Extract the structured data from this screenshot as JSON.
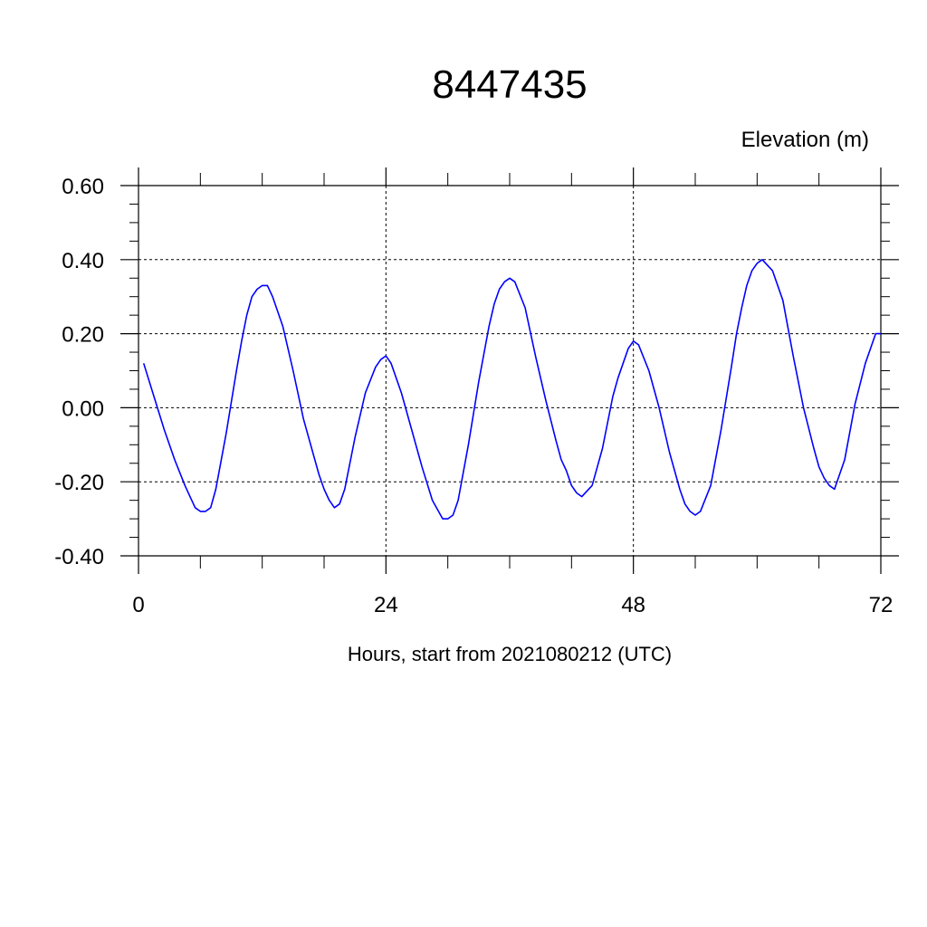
{
  "chart_data": {
    "type": "line",
    "title": "8447435",
    "ylabel": "Elevation (m)",
    "xlabel": "Hours, start from 2021080212 (UTC)",
    "xlim": [
      0,
      72
    ],
    "ylim": [
      -0.4,
      0.6
    ],
    "x_ticks": [
      0,
      24,
      48,
      72
    ],
    "x_tick_labels": [
      "0",
      "24",
      "48",
      "72"
    ],
    "y_ticks": [
      -0.4,
      -0.2,
      0.0,
      0.2,
      0.4,
      0.6
    ],
    "y_tick_labels": [
      "-0.40",
      "-0.20",
      "0.00",
      "0.20",
      "0.40",
      "0.60"
    ],
    "grid": true,
    "line_color": "#0000ff",
    "series": [
      {
        "x": [
          0.5,
          1.5,
          2.5,
          3.5,
          4.5,
          5.0,
          5.5,
          6.0,
          6.5,
          7.0,
          7.5,
          8.5,
          9.5,
          10.0,
          10.5,
          11.0,
          11.5,
          12.0,
          12.5,
          13.0,
          14.0,
          15.0,
          16.0,
          17.0,
          17.5,
          18.0,
          18.5,
          19.0,
          19.5,
          20.0,
          21.0,
          22.0,
          23.0,
          23.5,
          24.0,
          24.5,
          25.5,
          26.5,
          27.5,
          28.5,
          29.5,
          30.0,
          30.5,
          31.0,
          32.0,
          33.0,
          34.0,
          34.5,
          35.0,
          35.5,
          36.0,
          36.5,
          37.5,
          38.5,
          39.5,
          40.5,
          41.0,
          41.5,
          42.0,
          42.5,
          43.0,
          44.0,
          45.0,
          46.0,
          46.5,
          47.0,
          47.5,
          48.0,
          48.5,
          49.5,
          50.5,
          51.5,
          52.5,
          53.0,
          53.5,
          54.0,
          54.5,
          55.5,
          56.5,
          57.5,
          58.0,
          58.5,
          59.0,
          59.5,
          60.0,
          60.5,
          61.5,
          62.5,
          63.5,
          64.5,
          65.5,
          66.0,
          66.5,
          67.0,
          67.5,
          68.5,
          69.5,
          70.5,
          71.5,
          72.0
        ],
        "y": [
          0.12,
          0.03,
          -0.06,
          -0.14,
          -0.21,
          -0.24,
          -0.27,
          -0.28,
          -0.28,
          -0.27,
          -0.22,
          -0.07,
          0.1,
          0.18,
          0.25,
          0.3,
          0.32,
          0.33,
          0.33,
          0.3,
          0.22,
          0.1,
          -0.03,
          -0.13,
          -0.18,
          -0.22,
          -0.25,
          -0.27,
          -0.26,
          -0.22,
          -0.08,
          0.04,
          0.11,
          0.13,
          0.14,
          0.12,
          0.04,
          -0.06,
          -0.16,
          -0.25,
          -0.3,
          -0.3,
          -0.29,
          -0.25,
          -0.1,
          0.07,
          0.22,
          0.28,
          0.32,
          0.34,
          0.35,
          0.34,
          0.27,
          0.14,
          0.02,
          -0.09,
          -0.14,
          -0.17,
          -0.21,
          -0.23,
          -0.24,
          -0.21,
          -0.11,
          0.03,
          0.08,
          0.12,
          0.16,
          0.18,
          0.17,
          0.1,
          0.0,
          -0.12,
          -0.22,
          -0.26,
          -0.28,
          -0.29,
          -0.28,
          -0.21,
          -0.06,
          0.11,
          0.2,
          0.27,
          0.33,
          0.37,
          0.39,
          0.4,
          0.37,
          0.29,
          0.14,
          0.0,
          -0.11,
          -0.16,
          -0.19,
          -0.21,
          -0.22,
          -0.14,
          0.01,
          0.12,
          0.2,
          0.2
        ]
      }
    ]
  }
}
